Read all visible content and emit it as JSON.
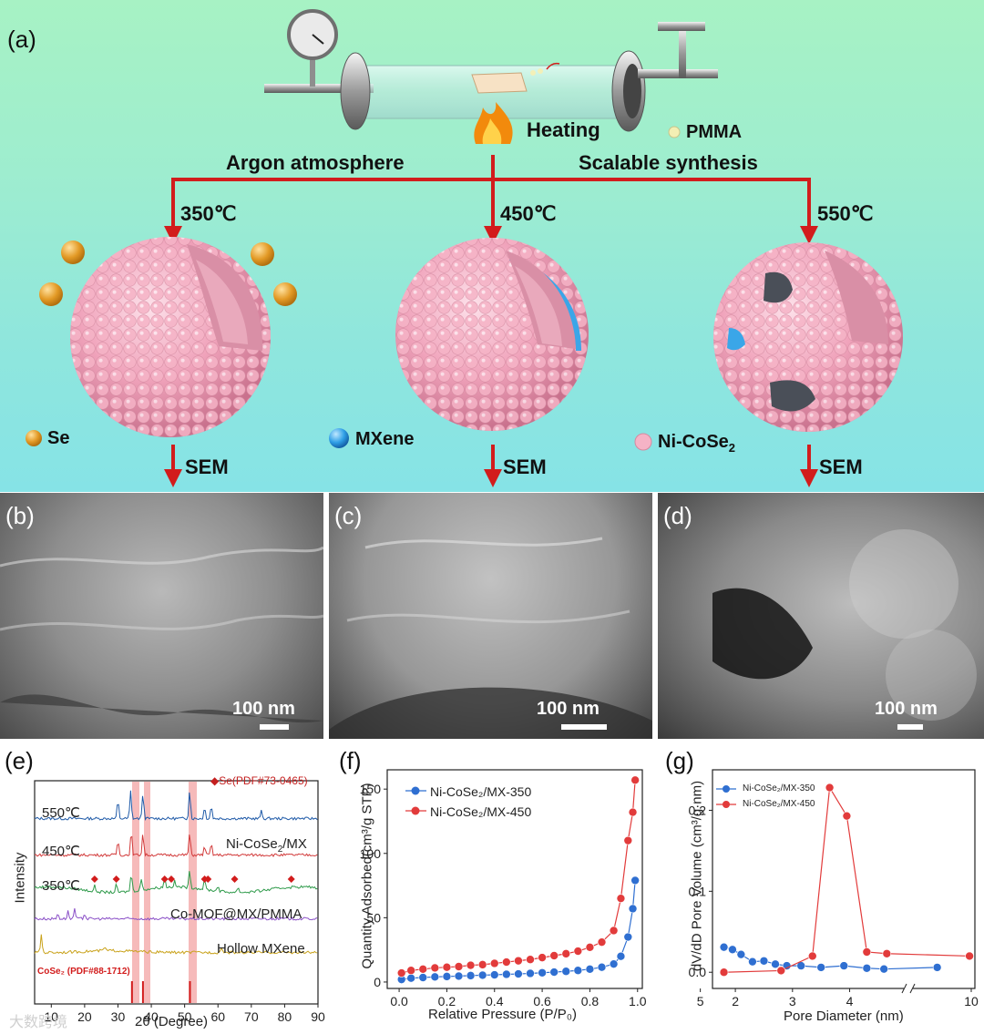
{
  "panel_a": {
    "letter": "(a)",
    "heating": "Heating",
    "pmma": "PMMA",
    "argon": "Argon atmosphere",
    "scalable": "Scalable synthesis",
    "temps": [
      "350℃",
      "450℃",
      "550℃"
    ],
    "sem": "SEM",
    "legend": {
      "se": "Se",
      "mxene": "MXene",
      "nicose2_base": "Ni-CoSe",
      "nicose2_sub": "2"
    },
    "colors": {
      "arrow": "#d21c1c",
      "sphere": "#f2a7bd",
      "mxene": "#3aa6e8",
      "se": "#e6a12e"
    }
  },
  "sem_panels": [
    {
      "letter": "(b)",
      "scale": "100 nm"
    },
    {
      "letter": "(c)",
      "scale": "100 nm"
    },
    {
      "letter": "(d)",
      "scale": "100 nm"
    }
  ],
  "panel_e": {
    "letter": "(e)",
    "legend": "◆Se(PDF#73-0465)",
    "ylabel": "Intensity",
    "xlabel": "2θ (Degree)",
    "xticks": [
      "10",
      "20",
      "30",
      "40",
      "50",
      "60",
      "70",
      "80",
      "90"
    ],
    "curves": [
      {
        "label": "550℃",
        "color": "#1f5aa8"
      },
      {
        "label": "450℃",
        "color": "#d23a3a"
      },
      {
        "label": "350℃",
        "color": "#2e9a4a"
      },
      {
        "label": "Co-MOF@MX/PMMA",
        "color": "#8a4fc7"
      },
      {
        "label": "Hollow MXene",
        "color": "#c9a21a"
      }
    ],
    "nicose2_label": "Ni-CoSe",
    "nicose2_sub": "2",
    "nicose2_suffix": "/MX",
    "ref_label": "CoSe₂ (PDF#88-1712)"
  },
  "panel_f": {
    "letter": "(f)",
    "ylabel": "Quantity Adsorbed(cm³/g STP)",
    "xlabel": "Relative Pressure (P/P₀)",
    "xticks": [
      "0.0",
      "0.2",
      "0.4",
      "0.6",
      "0.8",
      "1.0"
    ],
    "yticks": [
      "0",
      "50",
      "100",
      "150"
    ],
    "series_names": [
      "Ni-CoSe₂/MX-350",
      "Ni-CoSe₂/MX-450"
    ]
  },
  "panel_g": {
    "letter": "(g)",
    "ylabel": "dV/dD Pore Volume (cm³/g·nm)",
    "xlabel": "Pore Diameter (nm)",
    "xticks": [
      "2",
      "3",
      "4",
      "5",
      "10"
    ],
    "yticks": [
      "0.0",
      "0.1",
      "0.2"
    ],
    "series_names": [
      "Ni-CoSe₂/MX-350",
      "Ni-CoSe₂/MX-450"
    ]
  },
  "watermark": "大数跨境",
  "chart_data": [
    {
      "type": "line",
      "xlabel": "Relative Pressure (P/P₀)",
      "ylabel": "Quantity Adsorbed(cm³/g STP)",
      "xlim": [
        0,
        1.0
      ],
      "ylim": [
        0,
        160
      ],
      "series": [
        {
          "name": "Ni-CoSe₂/MX-350",
          "color": "#2f6fd1",
          "x": [
            0.01,
            0.05,
            0.1,
            0.15,
            0.2,
            0.25,
            0.3,
            0.35,
            0.4,
            0.45,
            0.5,
            0.55,
            0.6,
            0.65,
            0.7,
            0.75,
            0.8,
            0.85,
            0.9,
            0.93,
            0.96,
            0.98,
            0.99
          ],
          "y": [
            2,
            3,
            3.5,
            4,
            4.3,
            4.6,
            5,
            5.3,
            5.6,
            6,
            6.3,
            6.7,
            7.2,
            7.7,
            8.3,
            9,
            10,
            11.5,
            14,
            20,
            35,
            57,
            79
          ]
        },
        {
          "name": "Ni-CoSe₂/MX-450",
          "color": "#e23b3b",
          "x": [
            0.01,
            0.05,
            0.1,
            0.15,
            0.2,
            0.25,
            0.3,
            0.35,
            0.4,
            0.45,
            0.5,
            0.55,
            0.6,
            0.65,
            0.7,
            0.75,
            0.8,
            0.85,
            0.9,
            0.93,
            0.96,
            0.98,
            0.99
          ],
          "y": [
            7,
            9,
            10,
            11,
            11.5,
            12,
            13,
            13.5,
            14.5,
            15.5,
            16.5,
            17.5,
            19,
            20.5,
            22,
            24,
            27,
            31,
            40,
            65,
            110,
            132,
            157
          ]
        }
      ]
    },
    {
      "type": "line",
      "xlabel": "Pore Diameter (nm)",
      "ylabel": "dV/dD Pore Volume (cm³/g·nm)",
      "ylim": [
        0,
        0.25
      ],
      "series": [
        {
          "name": "Ni-CoSe₂/MX-350",
          "color": "#2f6fd1",
          "x": [
            1.8,
            1.95,
            2.1,
            2.3,
            2.5,
            2.7,
            2.9,
            3.15,
            3.5,
            3.9,
            4.3,
            4.6,
            9.4
          ],
          "y": [
            0.031,
            0.028,
            0.022,
            0.013,
            0.014,
            0.01,
            0.008,
            0.008,
            0.006,
            0.008,
            0.005,
            0.004,
            0.006
          ]
        },
        {
          "name": "Ni-CoSe₂/MX-450",
          "color": "#e23b3b",
          "x": [
            1.8,
            2.8,
            3.35,
            3.65,
            3.95,
            4.3,
            4.65,
            10
          ],
          "y": [
            0.0,
            0.002,
            0.02,
            0.228,
            0.193,
            0.025,
            0.023,
            0.02
          ]
        }
      ]
    }
  ]
}
